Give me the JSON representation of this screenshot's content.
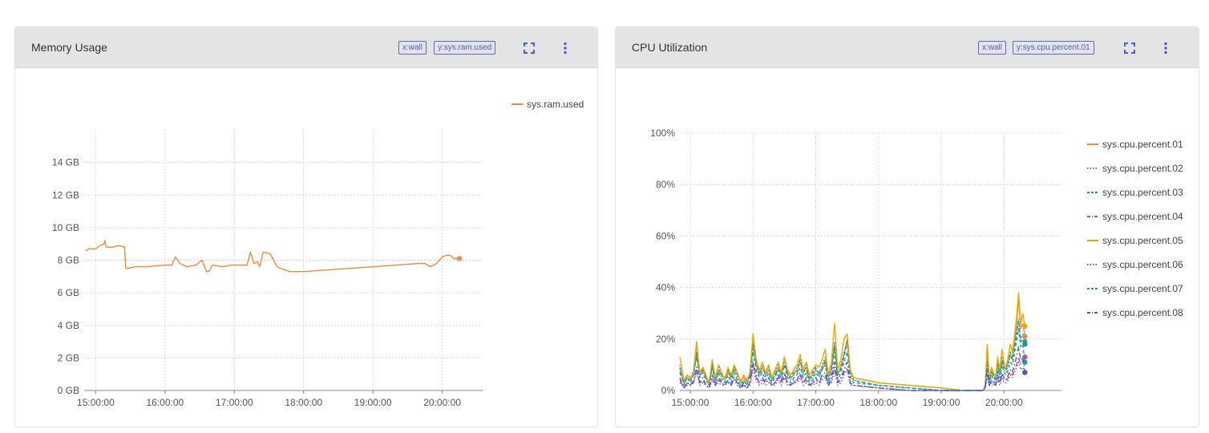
{
  "colors": {
    "accent": "#4a5bd8",
    "series": [
      "#f5873a",
      "#1f9ad6",
      "#1aa06d",
      "#d9457c",
      "#f0a500",
      "#7a4fc9",
      "#17a3a3",
      "#4458d1"
    ]
  },
  "icons": {
    "fullscreen": "fullscreen-icon",
    "more": "more-vert-icon"
  },
  "panels": [
    {
      "title": "Memory Usage",
      "tags": [
        "x:wall",
        "y:sys.ram.used"
      ],
      "legend": [
        "sys.ram.used"
      ]
    },
    {
      "title": "CPU Utilization",
      "tags": [
        "x:wall",
        "y:sys.cpu.percent.01"
      ],
      "legend": [
        "sys.cpu.percent.01",
        "sys.cpu.percent.02",
        "sys.cpu.percent.03",
        "sys.cpu.percent.04",
        "sys.cpu.percent.05",
        "sys.cpu.percent.06",
        "sys.cpu.percent.07",
        "sys.cpu.percent.08"
      ]
    }
  ],
  "chart_data": [
    {
      "type": "line",
      "x_kind": "time",
      "xlim": [
        "14:50",
        "20:35"
      ],
      "x_ticks": [
        "15:00:00",
        "16:00:00",
        "17:00:00",
        "18:00:00",
        "19:00:00",
        "20:00:00"
      ],
      "ylim": [
        0,
        16
      ],
      "y_ticks": [
        0,
        2,
        4,
        6,
        8,
        10,
        12,
        14
      ],
      "y_tick_labels": [
        "0 GB",
        "2 GB",
        "4 GB",
        "6 GB",
        "8 GB",
        "10 GB",
        "12 GB",
        "14 GB"
      ],
      "grid": true,
      "legend_position": "top-right",
      "series": [
        {
          "name": "sys.ram.used",
          "style": "solid",
          "end_marker": true,
          "x": [
            "14:51",
            "14:52",
            "14:54",
            "14:56",
            "15:00",
            "15:02",
            "15:04",
            "15:07",
            "15:08",
            "15:09",
            "15:12",
            "15:15",
            "15:20",
            "15:25",
            "15:26",
            "15:28",
            "15:35",
            "15:45",
            "16:00",
            "16:06",
            "16:09",
            "16:13",
            "16:19",
            "16:27",
            "16:32",
            "16:36",
            "16:38",
            "16:41",
            "16:50",
            "16:58",
            "17:11",
            "17:14",
            "17:17",
            "17:20",
            "17:22",
            "17:25",
            "17:31",
            "17:34",
            "17:37",
            "17:40",
            "17:48",
            "17:53",
            "18:00",
            "19:40",
            "19:45",
            "19:50",
            "19:55",
            "20:00",
            "20:04",
            "20:07",
            "20:10",
            "20:13",
            "20:15"
          ],
          "y": [
            8.6,
            8.6,
            8.7,
            8.7,
            8.7,
            8.8,
            8.9,
            9.0,
            9.2,
            8.8,
            8.8,
            8.8,
            8.9,
            8.8,
            7.5,
            7.5,
            7.6,
            7.6,
            7.7,
            7.7,
            8.2,
            7.8,
            7.6,
            7.7,
            8.0,
            7.3,
            7.3,
            7.7,
            7.6,
            7.7,
            7.7,
            8.5,
            7.8,
            7.9,
            7.6,
            8.5,
            8.4,
            8.0,
            7.6,
            7.5,
            7.3,
            7.3,
            7.3,
            7.8,
            7.8,
            7.6,
            7.8,
            8.2,
            8.3,
            8.3,
            8.1,
            8.1,
            8.1
          ]
        }
      ]
    },
    {
      "type": "line",
      "x_kind": "time",
      "xlim": [
        "14:50",
        "20:55"
      ],
      "x_ticks": [
        "15:00:00",
        "16:00:00",
        "17:00:00",
        "18:00:00",
        "19:00:00",
        "20:00:00"
      ],
      "ylim": [
        0,
        100
      ],
      "y_ticks": [
        0,
        20,
        40,
        60,
        80,
        100
      ],
      "y_tick_labels": [
        "0%",
        "20%",
        "40%",
        "60%",
        "80%",
        "100%"
      ],
      "grid": true,
      "legend_position": "right",
      "x": [
        "14:50",
        "14:54",
        "14:57",
        "15:00",
        "15:03",
        "15:06",
        "15:09",
        "15:12",
        "15:15",
        "15:18",
        "15:21",
        "15:24",
        "15:27",
        "15:30",
        "15:33",
        "15:36",
        "15:39",
        "15:42",
        "15:45",
        "15:48",
        "15:51",
        "15:54",
        "15:57",
        "16:00",
        "16:03",
        "16:06",
        "16:09",
        "16:12",
        "16:15",
        "16:18",
        "16:21",
        "16:24",
        "16:27",
        "16:30",
        "16:33",
        "16:36",
        "16:39",
        "16:42",
        "16:45",
        "16:48",
        "16:51",
        "16:54",
        "16:57",
        "17:00",
        "17:03",
        "17:06",
        "17:09",
        "17:12",
        "17:15",
        "17:18",
        "17:21",
        "17:24",
        "17:27",
        "17:30",
        "17:33",
        "17:36",
        "18:00",
        "18:30",
        "19:00",
        "19:20",
        "19:40",
        "19:42",
        "19:44",
        "19:46",
        "19:48",
        "19:50",
        "19:52",
        "19:54",
        "19:56",
        "19:58",
        "20:00",
        "20:02",
        "20:04",
        "20:06",
        "20:08",
        "20:10",
        "20:12",
        "20:14",
        "20:16",
        "20:18",
        "20:20"
      ],
      "series": [
        {
          "name": "sys.cpu.percent.01",
          "style": "solid",
          "end_marker": true,
          "values": [
            8,
            3,
            5,
            4,
            6,
            14,
            6,
            8,
            5,
            3,
            9,
            5,
            8,
            6,
            4,
            7,
            5,
            8,
            6,
            4,
            5,
            3,
            6,
            19,
            10,
            7,
            9,
            6,
            8,
            5,
            7,
            9,
            6,
            10,
            7,
            5,
            6,
            8,
            11,
            7,
            9,
            5,
            6,
            8,
            7,
            9,
            12,
            5,
            8,
            18,
            6,
            9,
            14,
            20,
            7,
            5,
            3,
            2,
            1,
            0,
            0,
            2,
            12,
            4,
            8,
            6,
            5,
            10,
            7,
            12,
            9,
            8,
            11,
            14,
            13,
            18,
            25,
            36,
            24,
            26,
            21
          ]
        },
        {
          "name": "sys.cpu.percent.02",
          "style": "dotted",
          "end_marker": true,
          "values": [
            10,
            2,
            6,
            4,
            8,
            17,
            5,
            9,
            4,
            2,
            11,
            3,
            9,
            5,
            3,
            8,
            4,
            9,
            5,
            2,
            4,
            2,
            7,
            17,
            9,
            6,
            10,
            5,
            9,
            4,
            6,
            10,
            5,
            12,
            6,
            4,
            7,
            9,
            12,
            6,
            10,
            4,
            5,
            9,
            6,
            10,
            13,
            4,
            9,
            19,
            5,
            10,
            15,
            18,
            6,
            4,
            2,
            1,
            0,
            0,
            0,
            1,
            11,
            3,
            7,
            5,
            4,
            9,
            6,
            11,
            8,
            7,
            10,
            13,
            12,
            17,
            22,
            28,
            20,
            22,
            19
          ]
        },
        {
          "name": "sys.cpu.percent.03",
          "style": "dashed",
          "end_marker": true,
          "values": [
            7,
            3,
            6,
            5,
            7,
            15,
            7,
            8,
            6,
            3,
            10,
            4,
            7,
            6,
            5,
            8,
            5,
            9,
            7,
            3,
            6,
            4,
            6,
            18,
            11,
            6,
            8,
            7,
            10,
            4,
            6,
            8,
            7,
            13,
            6,
            5,
            7,
            7,
            12,
            8,
            8,
            4,
            7,
            9,
            6,
            8,
            11,
            6,
            10,
            17,
            7,
            8,
            13,
            19,
            8,
            4,
            2,
            1,
            0,
            0,
            0,
            2,
            16,
            4,
            7,
            6,
            4,
            11,
            6,
            13,
            9,
            8,
            11,
            15,
            12,
            16,
            22,
            27,
            19,
            20,
            18
          ]
        },
        {
          "name": "sys.cpu.percent.04",
          "style": "dashdot",
          "end_marker": true,
          "values": [
            4,
            1,
            3,
            2,
            3,
            8,
            3,
            4,
            2,
            1,
            5,
            2,
            4,
            3,
            2,
            4,
            2,
            5,
            3,
            1,
            2,
            1,
            3,
            10,
            5,
            3,
            4,
            3,
            4,
            2,
            3,
            5,
            3,
            6,
            3,
            2,
            3,
            4,
            6,
            3,
            4,
            2,
            3,
            4,
            3,
            5,
            6,
            2,
            4,
            9,
            3,
            4,
            7,
            9,
            3,
            2,
            1,
            0,
            0,
            0,
            0,
            1,
            6,
            2,
            4,
            3,
            2,
            5,
            3,
            6,
            4,
            4,
            5,
            7,
            6,
            8,
            10,
            13,
            10,
            12,
            13
          ]
        },
        {
          "name": "sys.cpu.percent.05",
          "style": "solid",
          "end_marker": true,
          "values": [
            13,
            4,
            6,
            5,
            7,
            19,
            7,
            9,
            6,
            3,
            12,
            5,
            10,
            7,
            4,
            9,
            6,
            10,
            7,
            3,
            6,
            4,
            7,
            22,
            12,
            8,
            11,
            7,
            10,
            5,
            8,
            11,
            7,
            13,
            8,
            6,
            8,
            10,
            14,
            8,
            11,
            6,
            8,
            10,
            9,
            12,
            16,
            6,
            11,
            26,
            8,
            12,
            20,
            22,
            8,
            5,
            3,
            2,
            1,
            0,
            0,
            2,
            18,
            5,
            9,
            7,
            5,
            13,
            8,
            16,
            11,
            9,
            13,
            18,
            15,
            21,
            28,
            38,
            26,
            30,
            25
          ]
        },
        {
          "name": "sys.cpu.percent.06",
          "style": "dotted",
          "end_marker": true,
          "values": [
            3,
            1,
            2,
            2,
            3,
            7,
            2,
            3,
            2,
            1,
            4,
            2,
            3,
            2,
            2,
            3,
            2,
            4,
            2,
            1,
            2,
            1,
            2,
            8,
            4,
            2,
            3,
            2,
            3,
            2,
            2,
            4,
            2,
            5,
            2,
            2,
            3,
            3,
            5,
            2,
            3,
            2,
            2,
            3,
            2,
            4,
            5,
            2,
            3,
            8,
            2,
            3,
            6,
            8,
            2,
            2,
            1,
            0,
            0,
            0,
            0,
            1,
            5,
            2,
            3,
            2,
            2,
            4,
            2,
            5,
            3,
            3,
            4,
            6,
            5,
            7,
            9,
            11,
            8,
            9,
            7
          ]
        },
        {
          "name": "sys.cpu.percent.07",
          "style": "dashed",
          "end_marker": true,
          "values": [
            9,
            2,
            5,
            3,
            6,
            13,
            5,
            7,
            4,
            2,
            9,
            3,
            7,
            4,
            3,
            6,
            3,
            7,
            4,
            2,
            4,
            2,
            5,
            15,
            8,
            5,
            7,
            4,
            7,
            3,
            5,
            8,
            4,
            10,
            5,
            3,
            5,
            6,
            9,
            5,
            7,
            3,
            4,
            7,
            5,
            8,
            10,
            3,
            7,
            15,
            4,
            7,
            11,
            15,
            5,
            3,
            2,
            1,
            0,
            0,
            0,
            1,
            10,
            3,
            6,
            4,
            3,
            8,
            5,
            10,
            7,
            6,
            8,
            11,
            10,
            14,
            19,
            24,
            17,
            18,
            11
          ]
        },
        {
          "name": "sys.cpu.percent.08",
          "style": "dashdot",
          "end_marker": true,
          "values": [
            5,
            1,
            3,
            2,
            4,
            9,
            3,
            5,
            2,
            1,
            6,
            2,
            5,
            3,
            2,
            4,
            2,
            5,
            3,
            1,
            3,
            1,
            3,
            11,
            6,
            3,
            5,
            3,
            5,
            2,
            3,
            6,
            3,
            7,
            3,
            2,
            4,
            4,
            7,
            3,
            5,
            2,
            3,
            5,
            3,
            6,
            7,
            2,
            5,
            11,
            3,
            5,
            8,
            11,
            3,
            2,
            1,
            0,
            0,
            0,
            0,
            1,
            8,
            2,
            4,
            3,
            2,
            6,
            3,
            7,
            5,
            4,
            6,
            8,
            7,
            10,
            13,
            17,
            12,
            13,
            7
          ]
        }
      ]
    }
  ]
}
